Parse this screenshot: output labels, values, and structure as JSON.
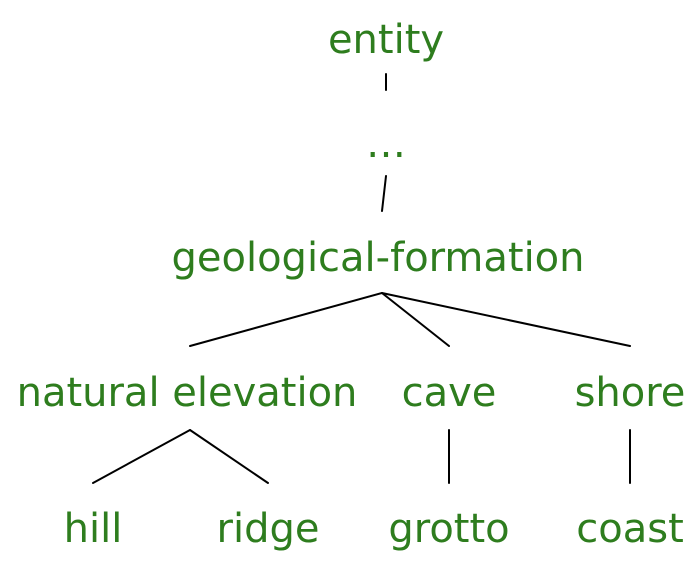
{
  "text_color": "#2e7d1e",
  "line_color": "#000000",
  "tree": {
    "root": "entity",
    "ellipsis": "…",
    "level2": "geological-formation",
    "level3": [
      "natural elevation",
      "cave",
      "shore"
    ],
    "leaves": [
      "hill",
      "ridge",
      "grotto",
      "coast"
    ]
  }
}
